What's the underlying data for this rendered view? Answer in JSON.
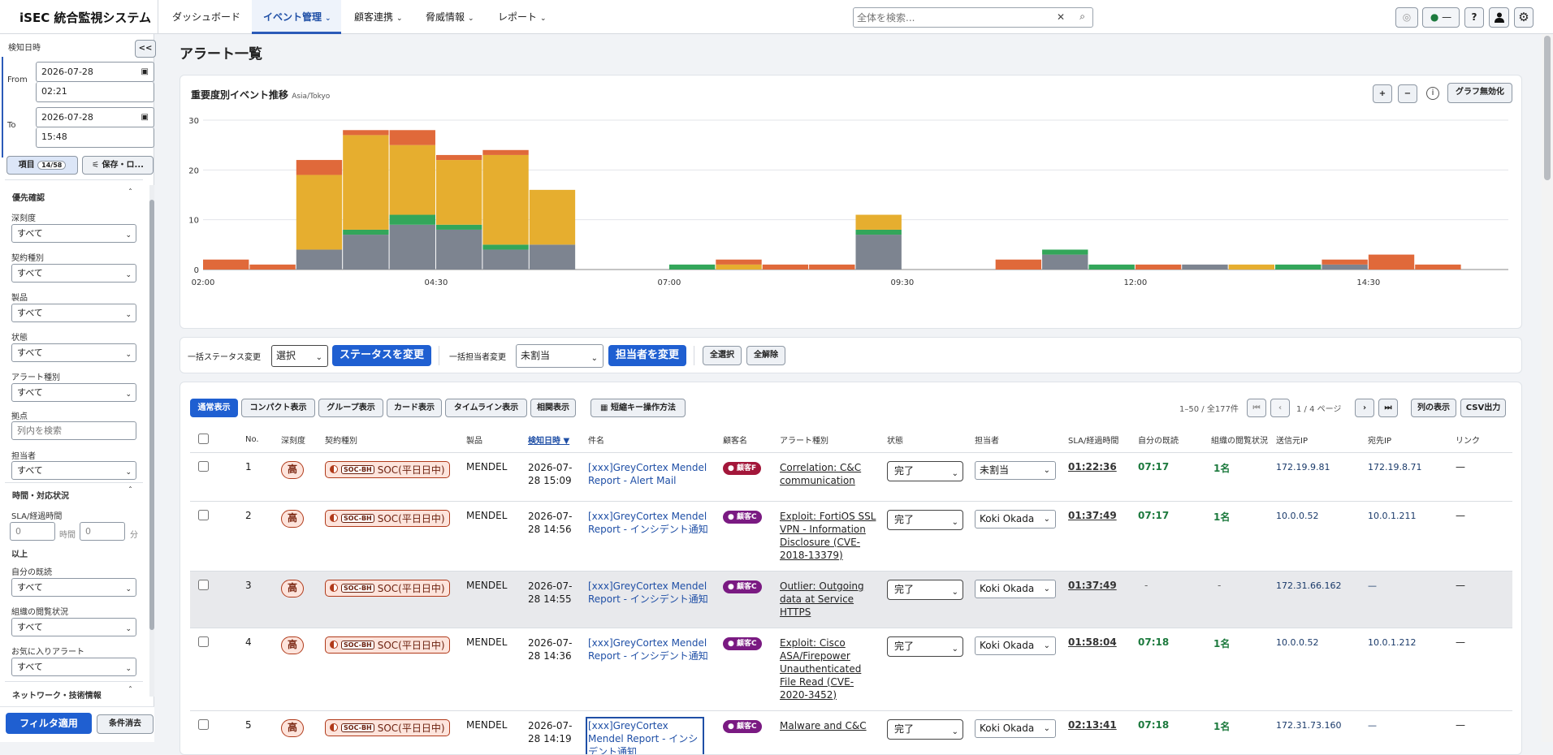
{
  "app": {
    "title": "iSEC 統合監視システム"
  },
  "nav": [
    {
      "label": "ダッシュボード",
      "dropdown": false,
      "active": false
    },
    {
      "label": "イベント管理",
      "dropdown": true,
      "active": true
    },
    {
      "label": "顧客連携",
      "dropdown": true,
      "active": false
    },
    {
      "label": "脅威情報",
      "dropdown": true,
      "active": false
    },
    {
      "label": "レポート",
      "dropdown": true,
      "active": false
    }
  ],
  "search": {
    "placeholder": "全体を検索..."
  },
  "topbar": {
    "status_label": "—"
  },
  "sidebar": {
    "collapse_label": "<<",
    "detect_time_label": "検知日時",
    "from_label": "From",
    "from_date": "2026-07-28",
    "from_time": "02:21",
    "to_label": "To",
    "to_date": "2026-07-28",
    "to_time": "15:48",
    "items_label": "項目",
    "items_count": "14/58",
    "save_label": "保存・ロ...",
    "section_priority": "優先確認",
    "filters": [
      {
        "label": "深刻度",
        "value": "すべて"
      },
      {
        "label": "契約種別",
        "value": "すべて"
      },
      {
        "label": "製品",
        "value": "すべて"
      },
      {
        "label": "状態",
        "value": "すべて"
      },
      {
        "label": "アラート種別",
        "value": "すべて"
      }
    ],
    "site_label": "拠点",
    "site_placeholder": "列内を検索",
    "assignee_label": "担当者",
    "assignee_value": "すべて",
    "section_time": "時間・対応状況",
    "sla_label": "SLA/経過時間",
    "sla_hours": "0",
    "sla_hours_unit": "時間",
    "sla_minutes": "0",
    "sla_minutes_unit": "分",
    "sla_suffix": "以上",
    "own_read_label": "自分の既読",
    "own_read_value": "すべて",
    "org_read_label": "組織の閲覧状況",
    "org_read_value": "すべて",
    "fav_label": "お気に入りアラート",
    "fav_value": "すべて",
    "section_network": "ネットワーク・技術情報",
    "apply_label": "フィルタ適用",
    "clear_label": "条件消去"
  },
  "page": {
    "title": "アラート一覧"
  },
  "chart_card": {
    "title": "重要度別イベント推移",
    "timezone": "Asia/Tokyo",
    "zoom_in": "+",
    "zoom_out": "−",
    "disable_label": "グラフ無効化"
  },
  "chart_data": {
    "type": "bar",
    "stacked": true,
    "x": [
      "02:00",
      "02:30",
      "03:00",
      "03:30",
      "04:00",
      "04:30",
      "05:00",
      "05:30",
      "06:00",
      "06:30",
      "07:00",
      "07:30",
      "08:00",
      "08:30",
      "09:00",
      "09:30",
      "10:00",
      "10:30",
      "11:00",
      "11:30",
      "12:00",
      "12:30",
      "13:00",
      "13:30",
      "14:00",
      "14:30",
      "15:00",
      "15:30"
    ],
    "x_tick_labels": [
      "02:00",
      "04:30",
      "07:00",
      "09:30",
      "12:00",
      "14:30"
    ],
    "ylim": [
      0,
      30
    ],
    "y_ticks": [
      0,
      10,
      20,
      30
    ],
    "grid": true,
    "series": [
      {
        "color": "#7d8490",
        "values": [
          0,
          0,
          4,
          7,
          9,
          8,
          4,
          5,
          0,
          0,
          0,
          0,
          0,
          0,
          7,
          0,
          0,
          0,
          3,
          0,
          0,
          1,
          0,
          0,
          1,
          0,
          0,
          0
        ]
      },
      {
        "color": "#33a65a",
        "values": [
          0,
          0,
          0,
          1,
          2,
          1,
          1,
          0,
          0,
          0,
          1,
          0,
          0,
          0,
          1,
          0,
          0,
          0,
          1,
          1,
          0,
          0,
          0,
          1,
          0,
          0,
          0,
          0
        ]
      },
      {
        "color": "#e6ae2f",
        "values": [
          0,
          0,
          15,
          19,
          14,
          13,
          18,
          11,
          0,
          0,
          0,
          1,
          0,
          0,
          3,
          0,
          0,
          0,
          0,
          0,
          0,
          0,
          1,
          0,
          0,
          0,
          0,
          0
        ]
      },
      {
        "color": "#e0693a",
        "values": [
          2,
          1,
          3,
          1,
          3,
          1,
          1,
          0,
          0,
          0,
          0,
          1,
          1,
          1,
          0,
          0,
          0,
          2,
          0,
          0,
          1,
          0,
          0,
          0,
          1,
          3,
          1,
          0
        ]
      }
    ]
  },
  "bulk": {
    "status_label": "一括ステータス変更",
    "status_value": "選択",
    "status_button": "ステータスを変更",
    "assignee_label": "一括担当者変更",
    "assignee_value": "未割当",
    "assignee_button": "担当者を変更",
    "select_all": "全選択",
    "deselect_all": "全解除"
  },
  "views": {
    "tabs": [
      "通常表示",
      "コンパクト表示",
      "グループ表示",
      "カード表示",
      "タイムライン表示",
      "相関表示"
    ],
    "shortcut_label": "短縮キー操作方法",
    "pagination": "1–50 / 全177件",
    "page_info": "1 / 4 ページ",
    "first": "⏮",
    "prev": "‹",
    "next": "›",
    "last": "⏭",
    "columns_button": "列の表示",
    "csv_button": "CSV出力"
  },
  "table": {
    "columns": [
      "No.",
      "深刻度",
      "契約種別",
      "製品",
      "検知日時 ▼",
      "件名",
      "顧客名",
      "アラート種別",
      "状態",
      "担当者",
      "SLA/経過時間",
      "自分の既読",
      "組織の閲覧状況",
      "送信元IP",
      "宛先IP",
      "リンク"
    ],
    "rows": [
      {
        "no": "1",
        "severity": "高",
        "contract_tag": "SOC-BH",
        "contract": "SOC(平日日中)",
        "product": "MENDEL",
        "date": "2026-07-28 15:09",
        "subject": "[xxx]GreyCortex Mendel Report - Alert Mail",
        "customer": "● 顧客F",
        "customer_color": "#a3173a",
        "alert_type": "Correlation: C&C communication",
        "status": "完了",
        "assignee": "未割当",
        "sla": "01:22:36",
        "own_read": "07:17",
        "org_read": "1名",
        "src_ip": "172.19.9.81",
        "dst_ip": "172.19.8.71",
        "link": "—"
      },
      {
        "no": "2",
        "severity": "高",
        "contract_tag": "SOC-BH",
        "contract": "SOC(平日日中)",
        "product": "MENDEL",
        "date": "2026-07-28 14:56",
        "subject": "[xxx]GreyCortex Mendel Report - インシデント通知",
        "customer": "● 顧客C",
        "customer_color": "#7a1a82",
        "alert_type": "Exploit: FortiOS SSL VPN - Information Disclosure (CVE-2018-13379)",
        "status": "完了",
        "assignee": "Koki Okada",
        "sla": "01:37:49",
        "own_read": "07:17",
        "org_read": "1名",
        "src_ip": "10.0.0.52",
        "dst_ip": "10.0.1.211",
        "link": "—"
      },
      {
        "no": "3",
        "severity": "高",
        "contract_tag": "SOC-BH",
        "contract": "SOC(平日日中)",
        "product": "MENDEL",
        "date": "2026-07-28 14:55",
        "subject": "[xxx]GreyCortex Mendel Report - インシデント通知",
        "customer": "● 顧客C",
        "customer_color": "#7a1a82",
        "alert_type": "Outlier: Outgoing data at Service HTTPS",
        "status": "完了",
        "assignee": "Koki Okada",
        "sla": "01:37:49",
        "own_read": "-",
        "org_read": "-",
        "src_ip": "172.31.66.162",
        "dst_ip": "—",
        "link": "—"
      },
      {
        "no": "4",
        "severity": "高",
        "contract_tag": "SOC-BH",
        "contract": "SOC(平日日中)",
        "product": "MENDEL",
        "date": "2026-07-28 14:36",
        "subject": "[xxx]GreyCortex Mendel Report - インシデント通知",
        "customer": "● 顧客C",
        "customer_color": "#7a1a82",
        "alert_type": "Exploit: Cisco ASA/Firepower Unauthenticated File Read (CVE-2020-3452)",
        "status": "完了",
        "assignee": "Koki Okada",
        "sla": "01:58:04",
        "own_read": "07:18",
        "org_read": "1名",
        "src_ip": "10.0.0.52",
        "dst_ip": "10.0.1.212",
        "link": "—"
      },
      {
        "no": "5",
        "severity": "高",
        "contract_tag": "SOC-BH",
        "contract": "SOC(平日日中)",
        "product": "MENDEL",
        "date": "2026-07-28 14:19",
        "subject": "[xxx]GreyCortex Mendel Report - インシデント通知",
        "customer": "● 顧客C",
        "customer_color": "#7a1a82",
        "alert_type": "Malware and C&C",
        "status": "完了",
        "assignee": "Koki Okada",
        "sla": "02:13:41",
        "own_read": "07:18",
        "org_read": "1名",
        "src_ip": "172.31.73.160",
        "dst_ip": "—",
        "link": "—"
      }
    ]
  }
}
